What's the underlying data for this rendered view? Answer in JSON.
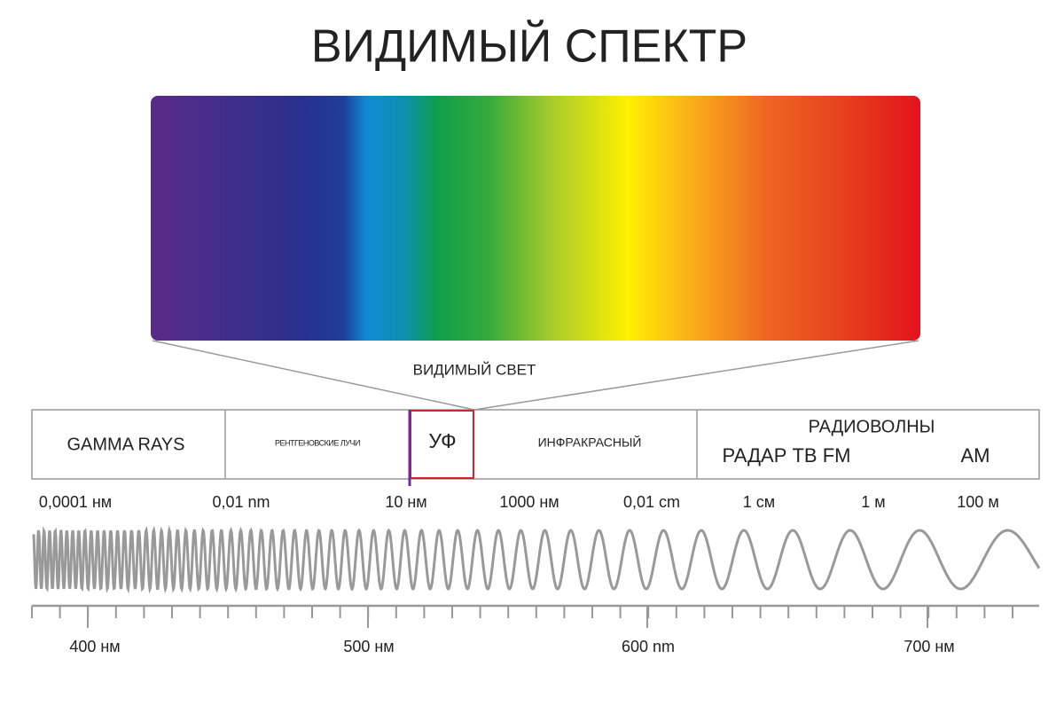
{
  "title": "ВИДИМЫЙ СПЕКТР",
  "visible_light": "ВИДИМЫЙ СВЕТ",
  "bands": {
    "gamma": "GAMMA RAYS",
    "xray": "РЕНТГЕНОВСКИЕ ЛУЧИ",
    "uv": "УФ",
    "infrared": "ИНФРАКРАСНЫЙ",
    "radio": "РАДИОВОЛНЫ",
    "radio_sub": "РАДАР ТВ FM",
    "am": "AM"
  },
  "wavelength_labels": [
    "0,0001 нм",
    "0,01 nm",
    "10 нм",
    "1000 нм",
    "0,01 cm",
    "1 см",
    "1 м",
    "100 м"
  ],
  "scale_labels": [
    "400 нм",
    "500 нм",
    "600 nm",
    "700 нм"
  ]
}
